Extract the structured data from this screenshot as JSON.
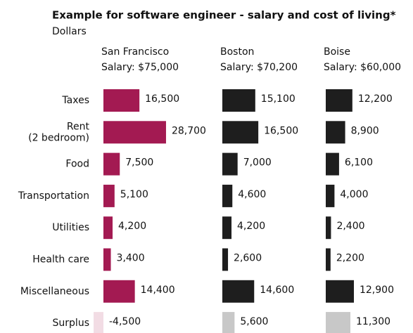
{
  "chart_data": {
    "type": "bar",
    "orientation": "horizontal",
    "title": "Example for software engineer - salary and cost of living*",
    "subtitle": "Dollars",
    "categories": [
      "Taxes",
      "Rent\n(2 bedroom)",
      "Food",
      "Transportation",
      "Utilities",
      "Health care",
      "Miscellaneous",
      "Surplus"
    ],
    "xlim": [
      0,
      30000
    ],
    "series": [
      {
        "name": "San Francisco",
        "salary": "Salary: $75,000",
        "color": "#a31a52",
        "surplus_color": "#f2dce4",
        "values": [
          16500,
          28700,
          7500,
          5100,
          4200,
          3400,
          14400,
          -4500
        ],
        "value_labels": [
          "16,500",
          "28,700",
          "7,500",
          "5,100",
          "4,200",
          "3,400",
          "14,400",
          "-4,500"
        ]
      },
      {
        "name": "Boston",
        "salary": "Salary: $70,200",
        "color": "#1e1e1e",
        "surplus_color": "#c8c8c8",
        "values": [
          15100,
          16500,
          7000,
          4600,
          4200,
          2600,
          14600,
          5600
        ],
        "value_labels": [
          "15,100",
          "16,500",
          "7,000",
          "4,600",
          "4,200",
          "2,600",
          "14,600",
          "5,600"
        ]
      },
      {
        "name": "Boise",
        "salary": "Salary: $60,000",
        "color": "#1e1e1e",
        "surplus_color": "#c8c8c8",
        "values": [
          12200,
          8900,
          6100,
          4000,
          2400,
          2200,
          12900,
          11300
        ],
        "value_labels": [
          "12,200",
          "8,900",
          "6,100",
          "4,000",
          "2,400",
          "2,200",
          "12,900",
          "11,300"
        ]
      }
    ]
  }
}
